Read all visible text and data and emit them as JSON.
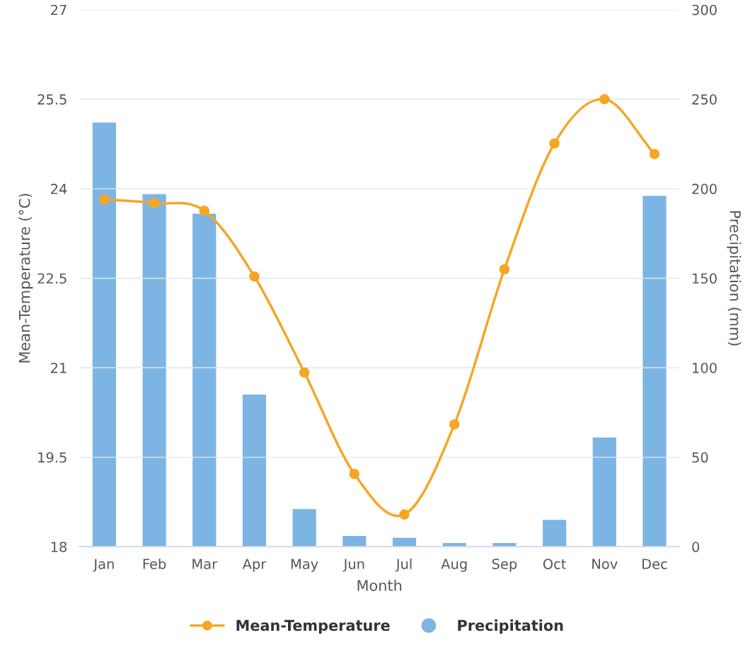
{
  "chart_data": {
    "type": "line",
    "xlabel": "Month",
    "ylabel": "Mean-Temperature (°C)",
    "y2label": "Precipitation (mm)",
    "categories": [
      "Jan",
      "Feb",
      "Mar",
      "Apr",
      "May",
      "Jun",
      "Jul",
      "Aug",
      "Sep",
      "Oct",
      "Nov",
      "Dec"
    ],
    "series": [
      {
        "name": "Mean-Temperature",
        "color": "#f5a623",
        "values": [
          23.82,
          23.76,
          23.63,
          22.53,
          20.92,
          19.22,
          18.54,
          20.05,
          22.65,
          24.76,
          25.5,
          24.58
        ]
      },
      {
        "name": "Precipitation",
        "type": "bar",
        "axis": "y2",
        "color": "#7cb5e3",
        "values": [
          237,
          197,
          186,
          85,
          21,
          6,
          5,
          2,
          2,
          15,
          61,
          196
        ]
      }
    ],
    "ylim": [
      18,
      27
    ],
    "yticks": [
      18,
      19.5,
      21,
      22.5,
      24,
      25.5,
      27
    ],
    "y2lim": [
      0,
      300
    ],
    "y2ticks": [
      0,
      50,
      100,
      150,
      200,
      250,
      300
    ],
    "grid": "y",
    "legend": "bottom",
    "marker": "circle",
    "line_style": "solid"
  }
}
